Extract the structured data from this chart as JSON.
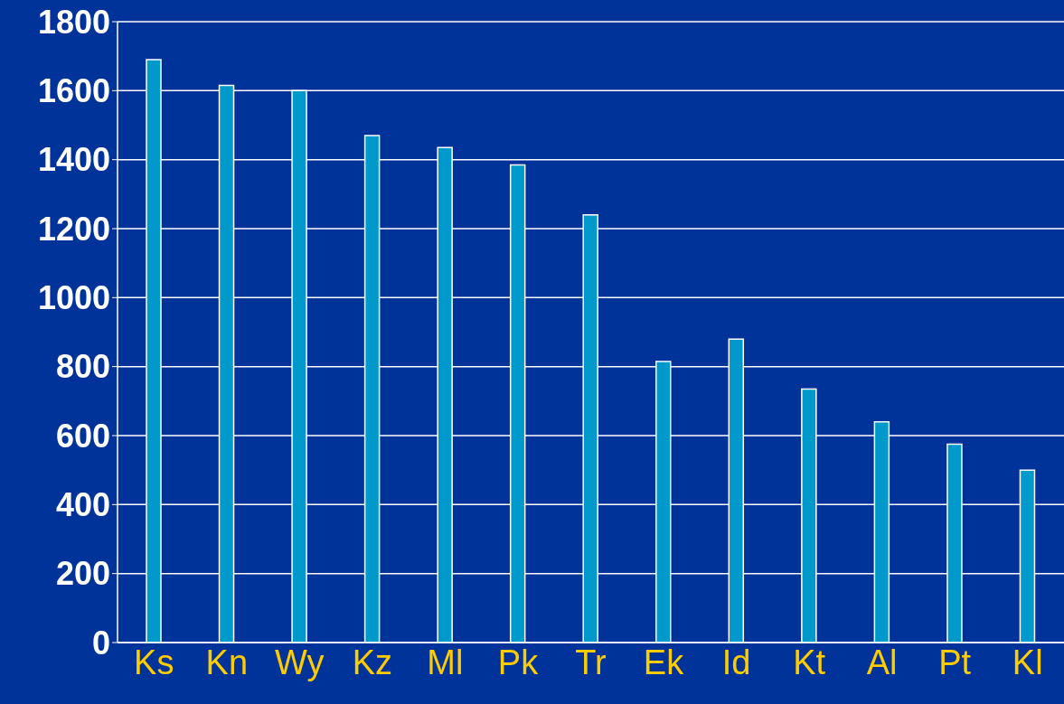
{
  "chart_data": {
    "type": "bar",
    "categories": [
      "Ks",
      "Kn",
      "Wy",
      "Kz",
      "Ml",
      "Pk",
      "Tr",
      "Ek",
      "Id",
      "Kt",
      "Al",
      "Pt",
      "Kl"
    ],
    "values": [
      1690,
      1615,
      1600,
      1470,
      1435,
      1385,
      1240,
      815,
      880,
      735,
      640,
      575,
      500
    ],
    "color": "#0099cc",
    "ylim": [
      0,
      1800
    ],
    "yticks": [
      0,
      200,
      400,
      600,
      800,
      1000,
      1200,
      1400,
      1600,
      1800
    ],
    "grid": "y"
  }
}
